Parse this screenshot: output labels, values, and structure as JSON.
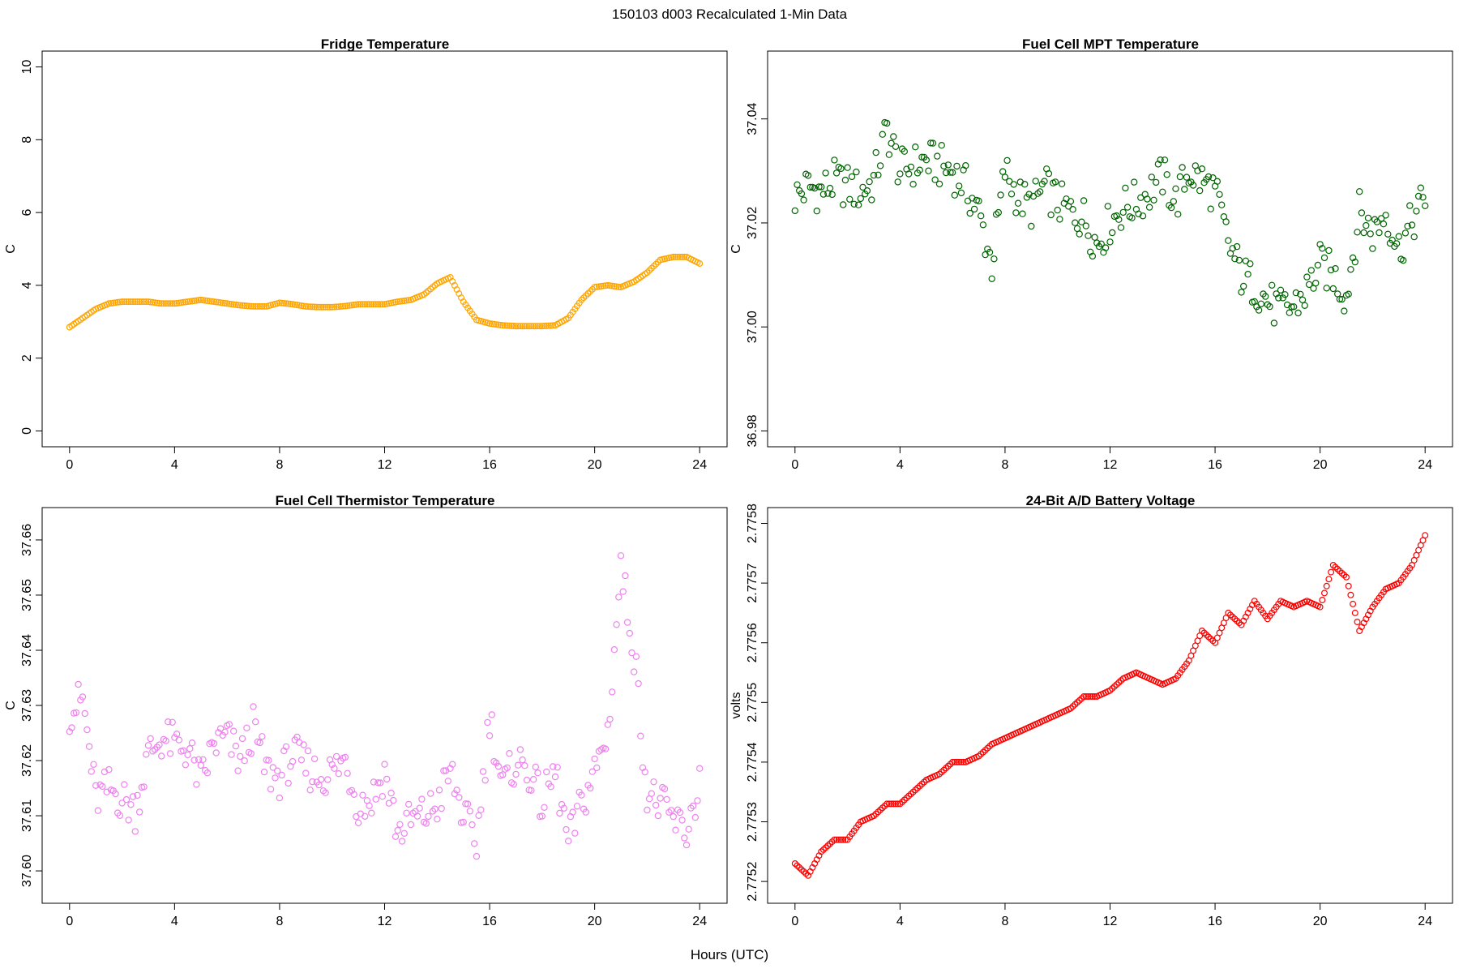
{
  "figure": {
    "suptitle": "150103   d003   Recalculated 1-Min Data",
    "xlabel": "Hours (UTC)"
  },
  "chart_data": [
    {
      "type": "scatter",
      "title": "Fridge Temperature",
      "ylabel": "C",
      "xlim": [
        0,
        24
      ],
      "ylim": [
        0,
        10
      ],
      "xticks": [
        "0",
        "4",
        "8",
        "12",
        "16",
        "20",
        "24"
      ],
      "yticks": [
        "0",
        "2",
        "4",
        "6",
        "8",
        "10"
      ],
      "color": "#FFA500",
      "marker": "open-circle",
      "x": [
        0,
        0.5,
        1,
        1.5,
        2,
        2.5,
        3,
        3.5,
        4,
        4.5,
        5,
        5.5,
        6,
        6.5,
        7,
        7.5,
        8,
        8.5,
        9,
        9.5,
        10,
        10.5,
        11,
        11.5,
        12,
        12.5,
        13,
        13.5,
        14,
        14.5,
        15,
        15.5,
        16,
        16.5,
        17,
        17.5,
        18,
        18.5,
        19,
        19.5,
        20,
        20.5,
        21,
        21.5,
        22,
        22.5,
        23,
        23.5,
        24
      ],
      "y": [
        2.85,
        3.1,
        3.35,
        3.5,
        3.55,
        3.55,
        3.55,
        3.5,
        3.5,
        3.55,
        3.6,
        3.55,
        3.5,
        3.45,
        3.42,
        3.42,
        3.52,
        3.48,
        3.42,
        3.4,
        3.4,
        3.43,
        3.48,
        3.48,
        3.48,
        3.55,
        3.6,
        3.75,
        4.05,
        4.22,
        3.55,
        3.05,
        2.95,
        2.9,
        2.88,
        2.88,
        2.88,
        2.9,
        3.1,
        3.6,
        3.95,
        4.0,
        3.95,
        4.1,
        4.35,
        4.7,
        4.78,
        4.78,
        4.6
      ]
    },
    {
      "type": "scatter",
      "title": "Fuel Cell MPT Temperature",
      "ylabel": "C",
      "xlim": [
        0,
        24
      ],
      "ylim": [
        36.98,
        37.05
      ],
      "xticks": [
        "0",
        "4",
        "8",
        "12",
        "16",
        "20",
        "24"
      ],
      "yticks": [
        "36.98",
        "37.00",
        "37.02",
        "37.04"
      ],
      "color": "#006400",
      "marker": "open-circle",
      "x": [
        0,
        0.5,
        1,
        1.5,
        2,
        2.5,
        3,
        3.5,
        4,
        4.5,
        5,
        5.5,
        6,
        6.5,
        7,
        7.5,
        8,
        8.5,
        9,
        9.5,
        10,
        10.5,
        11,
        11.5,
        12,
        12.5,
        13,
        13.5,
        14,
        14.5,
        15,
        15.5,
        16,
        16.5,
        17,
        17.5,
        18,
        18.5,
        19,
        19.5,
        20,
        20.5,
        21,
        21.5,
        22,
        22.5,
        23,
        23.5,
        24
      ],
      "y": [
        37.025,
        37.027,
        37.026,
        37.028,
        37.027,
        37.026,
        37.028,
        37.038,
        37.03,
        37.031,
        37.032,
        37.031,
        37.03,
        37.027,
        37.022,
        37.012,
        37.03,
        37.025,
        37.023,
        37.027,
        37.024,
        37.022,
        37.021,
        37.016,
        37.02,
        37.023,
        37.024,
        37.026,
        37.029,
        37.024,
        37.03,
        37.028,
        37.026,
        37.016,
        37.01,
        37.008,
        37.005,
        37.003,
        37.004,
        37.007,
        37.012,
        37.01,
        37.006,
        37.022,
        37.018,
        37.022,
        37.015,
        37.02,
        37.025
      ]
    },
    {
      "type": "scatter",
      "title": "Fuel Cell Thermistor Temperature",
      "ylabel": "C",
      "xlim": [
        0,
        24
      ],
      "ylim": [
        37.597,
        37.663
      ],
      "xticks": [
        "0",
        "4",
        "8",
        "12",
        "16",
        "20",
        "24"
      ],
      "yticks": [
        "37.60",
        "37.61",
        "37.62",
        "37.63",
        "37.64",
        "37.65",
        "37.66"
      ],
      "color": "#EE82EE",
      "marker": "open-circle",
      "x": [
        0,
        0.5,
        1,
        1.5,
        2,
        2.5,
        3,
        3.5,
        4,
        4.5,
        5,
        5.5,
        6,
        6.5,
        7,
        7.5,
        8,
        8.5,
        9,
        9.5,
        10,
        10.5,
        11,
        11.5,
        12,
        12.5,
        13,
        13.5,
        14,
        14.5,
        15,
        15.5,
        16,
        16.5,
        17,
        17.5,
        18,
        18.5,
        19,
        19.5,
        20,
        20.5,
        21,
        21.5,
        22,
        22.5,
        23,
        23.5,
        24
      ],
      "y": [
        37.629,
        37.631,
        37.613,
        37.615,
        37.613,
        37.611,
        37.621,
        37.624,
        37.623,
        37.622,
        37.616,
        37.623,
        37.624,
        37.62,
        37.626,
        37.618,
        37.617,
        37.621,
        37.619,
        37.617,
        37.618,
        37.62,
        37.612,
        37.613,
        37.618,
        37.607,
        37.609,
        37.61,
        37.612,
        37.618,
        37.61,
        37.605,
        37.628,
        37.615,
        37.62,
        37.618,
        37.612,
        37.618,
        37.605,
        37.612,
        37.618,
        37.625,
        37.655,
        37.64,
        37.614,
        37.612,
        37.609,
        37.607,
        37.616
      ]
    },
    {
      "type": "scatter",
      "title": "24-Bit A/D Battery Voltage",
      "ylabel": "volts",
      "xlim": [
        0,
        24
      ],
      "ylim": [
        2.77519,
        2.7758
      ],
      "xticks": [
        "0",
        "4",
        "8",
        "12",
        "16",
        "20",
        "24"
      ],
      "yticks": [
        "2.7752",
        "2.7753",
        "2.7754",
        "2.7755",
        "2.7756",
        "2.7757",
        "2.7758"
      ],
      "color": "#FF0000",
      "marker": "open-circle",
      "x": [
        0,
        0.5,
        1,
        1.5,
        2,
        2.5,
        3,
        3.5,
        4,
        4.5,
        5,
        5.5,
        6,
        6.5,
        7,
        7.5,
        8,
        8.5,
        9,
        9.5,
        10,
        10.5,
        11,
        11.5,
        12,
        12.5,
        13,
        13.5,
        14,
        14.5,
        15,
        15.5,
        16,
        16.5,
        17,
        17.5,
        18,
        18.5,
        19,
        19.5,
        20,
        20.5,
        21,
        21.5,
        22,
        22.5,
        23,
        23.5,
        24
      ],
      "y": [
        2.77523,
        2.77521,
        2.77525,
        2.77527,
        2.77527,
        2.7753,
        2.77531,
        2.77533,
        2.77533,
        2.77535,
        2.77537,
        2.77538,
        2.7754,
        2.7754,
        2.77541,
        2.77543,
        2.77544,
        2.77545,
        2.77546,
        2.77547,
        2.77548,
        2.77549,
        2.77551,
        2.77551,
        2.77552,
        2.77554,
        2.77555,
        2.77554,
        2.77553,
        2.77554,
        2.77557,
        2.77562,
        2.7756,
        2.77565,
        2.77563,
        2.77567,
        2.77564,
        2.77567,
        2.77566,
        2.77567,
        2.77566,
        2.77573,
        2.77571,
        2.77562,
        2.77566,
        2.77569,
        2.7757,
        2.77573,
        2.77578
      ]
    }
  ]
}
